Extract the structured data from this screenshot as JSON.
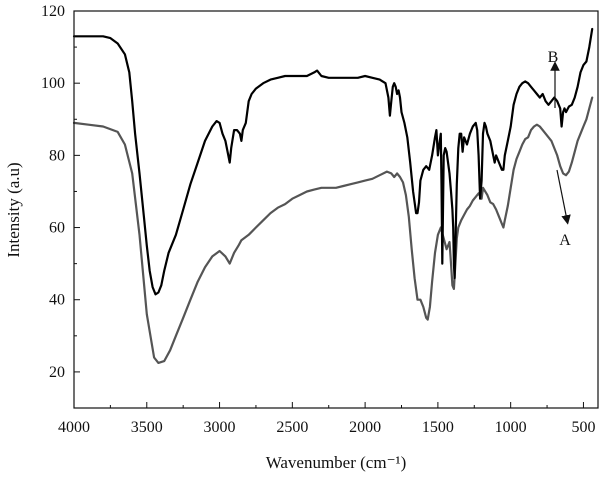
{
  "chart_data": {
    "type": "line",
    "title": "",
    "xlabel": "Wavenumber (cm⁻¹)",
    "ylabel": "Intensity (a.u)",
    "xlim": [
      4000,
      400
    ],
    "ylim": [
      10,
      120
    ],
    "x_reversed": true,
    "x_ticks": [
      4000,
      3500,
      3000,
      2500,
      2000,
      1500,
      1000,
      500
    ],
    "y_ticks": [
      20,
      40,
      60,
      80,
      100,
      120
    ],
    "grid": false,
    "legend": "none",
    "series": [
      {
        "name": "A",
        "color": "#555555",
        "points": [
          [
            4000,
            89
          ],
          [
            3900,
            88.5
          ],
          [
            3800,
            88
          ],
          [
            3700,
            86.5
          ],
          [
            3650,
            83
          ],
          [
            3600,
            75
          ],
          [
            3550,
            58
          ],
          [
            3500,
            36
          ],
          [
            3450,
            24
          ],
          [
            3420,
            22.5
          ],
          [
            3380,
            23
          ],
          [
            3340,
            26
          ],
          [
            3300,
            30
          ],
          [
            3250,
            35
          ],
          [
            3200,
            40
          ],
          [
            3150,
            45
          ],
          [
            3100,
            49
          ],
          [
            3050,
            52
          ],
          [
            3000,
            53.5
          ],
          [
            2960,
            52
          ],
          [
            2930,
            50
          ],
          [
            2900,
            53
          ],
          [
            2870,
            55
          ],
          [
            2850,
            56.5
          ],
          [
            2800,
            58
          ],
          [
            2750,
            60
          ],
          [
            2700,
            62
          ],
          [
            2650,
            64
          ],
          [
            2600,
            65.5
          ],
          [
            2550,
            66.5
          ],
          [
            2500,
            68
          ],
          [
            2450,
            69
          ],
          [
            2400,
            70
          ],
          [
            2350,
            70.5
          ],
          [
            2300,
            71
          ],
          [
            2250,
            71
          ],
          [
            2200,
            71
          ],
          [
            2150,
            71.5
          ],
          [
            2100,
            72
          ],
          [
            2050,
            72.5
          ],
          [
            2000,
            73
          ],
          [
            1950,
            73.5
          ],
          [
            1900,
            74.5
          ],
          [
            1850,
            75.5
          ],
          [
            1820,
            75
          ],
          [
            1800,
            74
          ],
          [
            1780,
            75
          ],
          [
            1760,
            74
          ],
          [
            1740,
            72.5
          ],
          [
            1720,
            69
          ],
          [
            1700,
            63
          ],
          [
            1680,
            54
          ],
          [
            1660,
            46
          ],
          [
            1640,
            40
          ],
          [
            1620,
            40
          ],
          [
            1600,
            38
          ],
          [
            1580,
            35
          ],
          [
            1570,
            34.5
          ],
          [
            1555,
            38
          ],
          [
            1540,
            45
          ],
          [
            1520,
            53
          ],
          [
            1500,
            58
          ],
          [
            1480,
            60
          ],
          [
            1460,
            57
          ],
          [
            1440,
            54
          ],
          [
            1420,
            56
          ],
          [
            1410,
            50
          ],
          [
            1400,
            44
          ],
          [
            1390,
            43
          ],
          [
            1380,
            50
          ],
          [
            1370,
            57
          ],
          [
            1360,
            60
          ],
          [
            1340,
            62
          ],
          [
            1320,
            63.5
          ],
          [
            1300,
            65
          ],
          [
            1280,
            66
          ],
          [
            1260,
            67.5
          ],
          [
            1240,
            68.5
          ],
          [
            1220,
            69.5
          ],
          [
            1200,
            68
          ],
          [
            1190,
            71
          ],
          [
            1160,
            69
          ],
          [
            1140,
            67
          ],
          [
            1120,
            66.5
          ],
          [
            1100,
            65
          ],
          [
            1080,
            63
          ],
          [
            1060,
            61
          ],
          [
            1050,
            60
          ],
          [
            1040,
            62
          ],
          [
            1020,
            66
          ],
          [
            1000,
            71
          ],
          [
            980,
            76
          ],
          [
            960,
            79
          ],
          [
            940,
            81
          ],
          [
            920,
            83
          ],
          [
            900,
            84.5
          ],
          [
            880,
            85
          ],
          [
            860,
            87
          ],
          [
            840,
            88
          ],
          [
            820,
            88.5
          ],
          [
            800,
            88
          ],
          [
            780,
            87
          ],
          [
            760,
            86
          ],
          [
            740,
            85
          ],
          [
            720,
            84
          ],
          [
            700,
            82
          ],
          [
            680,
            80
          ],
          [
            660,
            77
          ],
          [
            640,
            75
          ],
          [
            620,
            74.5
          ],
          [
            600,
            75.5
          ],
          [
            580,
            78
          ],
          [
            560,
            81
          ],
          [
            540,
            84
          ],
          [
            520,
            86
          ],
          [
            500,
            88
          ],
          [
            480,
            90
          ],
          [
            460,
            93
          ],
          [
            440,
            96
          ]
        ]
      },
      {
        "name": "B",
        "color": "#000000",
        "points": [
          [
            4000,
            113
          ],
          [
            3900,
            113
          ],
          [
            3800,
            113
          ],
          [
            3750,
            112.5
          ],
          [
            3700,
            111
          ],
          [
            3650,
            108
          ],
          [
            3620,
            103
          ],
          [
            3600,
            95
          ],
          [
            3580,
            86
          ],
          [
            3550,
            75
          ],
          [
            3520,
            63
          ],
          [
            3500,
            55
          ],
          [
            3480,
            48
          ],
          [
            3460,
            43.5
          ],
          [
            3440,
            41.5
          ],
          [
            3420,
            42
          ],
          [
            3400,
            44
          ],
          [
            3380,
            48
          ],
          [
            3350,
            53
          ],
          [
            3300,
            58
          ],
          [
            3250,
            65
          ],
          [
            3200,
            72
          ],
          [
            3150,
            78
          ],
          [
            3100,
            84
          ],
          [
            3050,
            88
          ],
          [
            3020,
            89.5
          ],
          [
            3000,
            89
          ],
          [
            2980,
            86
          ],
          [
            2960,
            84
          ],
          [
            2940,
            80
          ],
          [
            2930,
            78
          ],
          [
            2920,
            82
          ],
          [
            2900,
            87
          ],
          [
            2880,
            87
          ],
          [
            2860,
            86
          ],
          [
            2850,
            84
          ],
          [
            2840,
            87
          ],
          [
            2820,
            89
          ],
          [
            2800,
            95
          ],
          [
            2780,
            97
          ],
          [
            2750,
            98.5
          ],
          [
            2700,
            100
          ],
          [
            2650,
            101
          ],
          [
            2600,
            101.5
          ],
          [
            2550,
            102
          ],
          [
            2500,
            102
          ],
          [
            2450,
            102
          ],
          [
            2400,
            102
          ],
          [
            2350,
            103
          ],
          [
            2330,
            103.5
          ],
          [
            2300,
            102
          ],
          [
            2250,
            101.5
          ],
          [
            2200,
            101.5
          ],
          [
            2150,
            101.5
          ],
          [
            2100,
            101.5
          ],
          [
            2050,
            101.5
          ],
          [
            2000,
            102
          ],
          [
            1950,
            101.5
          ],
          [
            1900,
            101
          ],
          [
            1860,
            100
          ],
          [
            1840,
            96
          ],
          [
            1830,
            91
          ],
          [
            1820,
            95
          ],
          [
            1810,
            99
          ],
          [
            1800,
            100
          ],
          [
            1790,
            99
          ],
          [
            1780,
            97
          ],
          [
            1770,
            98
          ],
          [
            1760,
            96
          ],
          [
            1750,
            92
          ],
          [
            1730,
            89
          ],
          [
            1710,
            85
          ],
          [
            1690,
            78
          ],
          [
            1670,
            70
          ],
          [
            1650,
            64
          ],
          [
            1640,
            64
          ],
          [
            1630,
            67
          ],
          [
            1620,
            73
          ],
          [
            1600,
            76
          ],
          [
            1580,
            77
          ],
          [
            1560,
            76
          ],
          [
            1540,
            80
          ],
          [
            1520,
            85
          ],
          [
            1510,
            87
          ],
          [
            1500,
            80
          ],
          [
            1490,
            83
          ],
          [
            1480,
            86
          ],
          [
            1475,
            72
          ],
          [
            1470,
            50
          ],
          [
            1465,
            65
          ],
          [
            1460,
            80
          ],
          [
            1450,
            82
          ],
          [
            1440,
            81
          ],
          [
            1420,
            75
          ],
          [
            1410,
            70
          ],
          [
            1400,
            65
          ],
          [
            1395,
            60
          ],
          [
            1390,
            50
          ],
          [
            1385,
            46
          ],
          [
            1380,
            55
          ],
          [
            1370,
            72
          ],
          [
            1360,
            82
          ],
          [
            1350,
            86
          ],
          [
            1340,
            86
          ],
          [
            1330,
            81
          ],
          [
            1320,
            85
          ],
          [
            1300,
            83
          ],
          [
            1280,
            86
          ],
          [
            1260,
            88
          ],
          [
            1240,
            89
          ],
          [
            1230,
            87
          ],
          [
            1220,
            80
          ],
          [
            1210,
            68
          ],
          [
            1200,
            73
          ],
          [
            1190,
            86
          ],
          [
            1180,
            89
          ],
          [
            1170,
            88
          ],
          [
            1160,
            86
          ],
          [
            1140,
            84
          ],
          [
            1120,
            80
          ],
          [
            1110,
            78
          ],
          [
            1100,
            80
          ],
          [
            1080,
            78
          ],
          [
            1060,
            76
          ],
          [
            1050,
            76
          ],
          [
            1040,
            80
          ],
          [
            1020,
            84
          ],
          [
            1000,
            88
          ],
          [
            980,
            94
          ],
          [
            960,
            97
          ],
          [
            940,
            99
          ],
          [
            920,
            100
          ],
          [
            900,
            100.5
          ],
          [
            880,
            100
          ],
          [
            860,
            99
          ],
          [
            840,
            98
          ],
          [
            820,
            97
          ],
          [
            800,
            96
          ],
          [
            780,
            97
          ],
          [
            760,
            95
          ],
          [
            740,
            94
          ],
          [
            720,
            95
          ],
          [
            700,
            96
          ],
          [
            680,
            95
          ],
          [
            660,
            93
          ],
          [
            650,
            88
          ],
          [
            640,
            92
          ],
          [
            630,
            93
          ],
          [
            620,
            92
          ],
          [
            600,
            93.5
          ],
          [
            580,
            94
          ],
          [
            560,
            96
          ],
          [
            540,
            99
          ],
          [
            520,
            103
          ],
          [
            500,
            105
          ],
          [
            480,
            106
          ],
          [
            460,
            110
          ],
          [
            440,
            115
          ]
        ]
      }
    ],
    "annotations": [
      {
        "label": "A",
        "series": "A",
        "direction": "down"
      },
      {
        "label": "B",
        "series": "B",
        "direction": "up"
      }
    ]
  }
}
